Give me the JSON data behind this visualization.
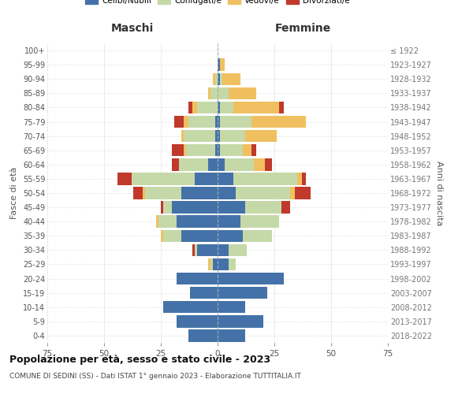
{
  "age_groups": [
    "0-4",
    "5-9",
    "10-14",
    "15-19",
    "20-24",
    "25-29",
    "30-34",
    "35-39",
    "40-44",
    "45-49",
    "50-54",
    "55-59",
    "60-64",
    "65-69",
    "70-74",
    "75-79",
    "80-84",
    "85-89",
    "90-94",
    "95-99",
    "100+"
  ],
  "birth_years": [
    "2018-2022",
    "2013-2017",
    "2008-2012",
    "2003-2007",
    "1998-2002",
    "1993-1997",
    "1988-1992",
    "1983-1987",
    "1978-1982",
    "1973-1977",
    "1968-1972",
    "1963-1967",
    "1958-1962",
    "1953-1957",
    "1948-1952",
    "1943-1947",
    "1938-1942",
    "1933-1937",
    "1928-1932",
    "1923-1927",
    "≤ 1922"
  ],
  "maschi": {
    "celibi": [
      13,
      18,
      24,
      12,
      18,
      2,
      9,
      16,
      18,
      20,
      16,
      10,
      4,
      1,
      1,
      1,
      0,
      0,
      0,
      0,
      0
    ],
    "coniugati": [
      0,
      0,
      0,
      0,
      0,
      1,
      1,
      8,
      8,
      4,
      16,
      28,
      13,
      13,
      14,
      12,
      9,
      3,
      1,
      0,
      0
    ],
    "vedovi": [
      0,
      0,
      0,
      0,
      0,
      1,
      0,
      1,
      1,
      0,
      1,
      0,
      0,
      1,
      1,
      2,
      2,
      1,
      1,
      0,
      0
    ],
    "divorziati": [
      0,
      0,
      0,
      0,
      0,
      0,
      1,
      0,
      0,
      1,
      4,
      6,
      3,
      5,
      0,
      4,
      2,
      0,
      0,
      0,
      0
    ]
  },
  "femmine": {
    "nubili": [
      12,
      20,
      12,
      22,
      29,
      5,
      5,
      11,
      10,
      12,
      8,
      7,
      3,
      1,
      1,
      1,
      1,
      0,
      1,
      1,
      0
    ],
    "coniugate": [
      0,
      0,
      0,
      0,
      0,
      3,
      8,
      13,
      17,
      16,
      24,
      28,
      13,
      10,
      11,
      14,
      6,
      5,
      1,
      0,
      0
    ],
    "vedove": [
      0,
      0,
      0,
      0,
      0,
      0,
      0,
      0,
      0,
      0,
      2,
      2,
      5,
      4,
      14,
      24,
      20,
      12,
      8,
      2,
      0
    ],
    "divorziate": [
      0,
      0,
      0,
      0,
      0,
      0,
      0,
      0,
      0,
      4,
      7,
      2,
      3,
      2,
      0,
      0,
      2,
      0,
      0,
      0,
      0
    ]
  },
  "colors": {
    "celibi": "#4472a8",
    "coniugati": "#c5d9a8",
    "vedovi": "#f0c060",
    "divorziati": "#c0392b"
  },
  "xlim": 75,
  "title": "Popolazione per età, sesso e stato civile - 2023",
  "subtitle": "COMUNE DI SEDINI (SS) - Dati ISTAT 1° gennaio 2023 - Elaborazione TUTTITALIA.IT",
  "xlabel_left": "Maschi",
  "xlabel_right": "Femmine",
  "ylabel": "Fasce di età",
  "ylabel_right": "Anni di nascita",
  "legend_labels": [
    "Celibi/Nubili",
    "Coniugati/e",
    "Vedovi/e",
    "Divorziati/e"
  ]
}
